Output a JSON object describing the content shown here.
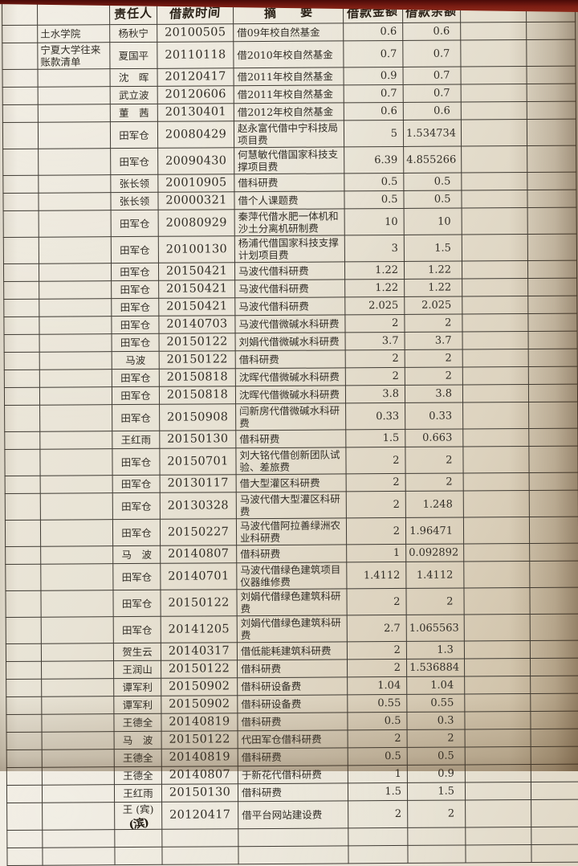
{
  "header": {
    "person": "责任人",
    "date": "借款时间",
    "summary": "摘　　要",
    "amount": "借款金额",
    "balance": "借款余额"
  },
  "rows": [
    {
      "category": "土水学院",
      "person": "杨秋宁",
      "date": "20100505",
      "summary": "借09年校自然基金",
      "amount": "0.6",
      "balance": "0.6"
    },
    {
      "category": "宁夏大学往来账款清单",
      "person": "夏国平",
      "date": "20110118",
      "summary": "借2010年校自然基金",
      "amount": "0.7",
      "balance": "0.7"
    },
    {
      "person": "沈　晖",
      "date": "20120417",
      "summary": "借2011年校自然基金",
      "amount": "0.9",
      "balance": "0.7"
    },
    {
      "person": "武立波",
      "date": "20120606",
      "summary": "借2011年校自然基金",
      "amount": "0.7",
      "balance": "0.7"
    },
    {
      "person": "董　茜",
      "date": "20130401",
      "summary": "借2012年校自然基金",
      "amount": "0.6",
      "balance": "0.6"
    },
    {
      "person": "田军仓",
      "date": "20080429",
      "summary": "赵永富代借中宁科技局项目费",
      "amount": "5",
      "balance": "1.534734"
    },
    {
      "person": "田军仓",
      "date": "20090430",
      "summary": "何慧敏代借国家科技支撑项目费",
      "amount": "6.39",
      "balance": "4.855266"
    },
    {
      "person": "张长领",
      "date": "20010905",
      "summary": "借科研费",
      "amount": "0.5",
      "balance": "0.5"
    },
    {
      "person": "张长领",
      "date": "20000321",
      "summary": "借个人课题费",
      "amount": "0.5",
      "balance": "0.5"
    },
    {
      "person": "田军仓",
      "date": "20080929",
      "summary": "秦萍代借水肥一体机和沙土分离机研制费",
      "amount": "10",
      "balance": "10"
    },
    {
      "person": "田军仓",
      "date": "20100130",
      "summary": "杨浦代借国家科技支撑计划项目费",
      "amount": "3",
      "balance": "1.5"
    },
    {
      "person": "田军仓",
      "date": "20150421",
      "summary": "马波代借科研费",
      "amount": "1.22",
      "balance": "1.22"
    },
    {
      "person": "田军仓",
      "date": "20150421",
      "summary": "马波代借科研费",
      "amount": "1.22",
      "balance": "1.22"
    },
    {
      "person": "田军仓",
      "date": "20150421",
      "summary": "马波代借科研费",
      "amount": "2.025",
      "balance": "2.025"
    },
    {
      "person": "田军仓",
      "date": "20140703",
      "summary": "马波代借微碱水科研费",
      "amount": "2",
      "balance": "2"
    },
    {
      "person": "田军仓",
      "date": "20150122",
      "summary": "刘娟代借微碱水科研费",
      "amount": "3.7",
      "balance": "3.7"
    },
    {
      "person": "马波",
      "date": "20150122",
      "summary": "借科研费",
      "amount": "2",
      "balance": "2"
    },
    {
      "person": "田军仓",
      "date": "20150818",
      "summary": "沈晖代借微碱水科研费",
      "amount": "2",
      "balance": "2"
    },
    {
      "person": "田军仓",
      "date": "20150818",
      "summary": "沈晖代借微碱水科研费",
      "amount": "3.8",
      "balance": "3.8"
    },
    {
      "person": "田军仓",
      "date": "20150908",
      "summary": "闫新房代借微碱水科研费",
      "amount": "0.33",
      "balance": "0.33"
    },
    {
      "person": "王红雨",
      "date": "20150130",
      "summary": "借科研费",
      "amount": "1.5",
      "balance": "0.663"
    },
    {
      "person": "田军仓",
      "date": "20150701",
      "summary": "刘大铭代借创新团队试验、差旅费",
      "amount": "2",
      "balance": "2"
    },
    {
      "person": "田军仓",
      "date": "20130117",
      "summary": "借大型灌区科研费",
      "amount": "2",
      "balance": "2"
    },
    {
      "person": "田军仓",
      "date": "20130328",
      "summary": "马波代借大型灌区科研费",
      "amount": "2",
      "balance": "1.248"
    },
    {
      "person": "田军仓",
      "date": "20150227",
      "summary": "马波代借阿拉善绿洲农业科研费",
      "amount": "2",
      "balance": "1.96471"
    },
    {
      "person": "马　波",
      "date": "20140807",
      "summary": "借科研费",
      "amount": "1",
      "balance": "0.092892"
    },
    {
      "person": "田军仓",
      "date": "20140701",
      "summary": "马波代借绿色建筑项目仪器维修费",
      "amount": "1.4112",
      "balance": "1.4112"
    },
    {
      "person": "田军仓",
      "date": "20150122",
      "summary": "刘娟代借绿色建筑科研费",
      "amount": "2",
      "balance": "2"
    },
    {
      "person": "田军仓",
      "date": "20141205",
      "summary": "刘娟代借绿色建筑科研费",
      "amount": "2.7",
      "balance": "1.065563"
    },
    {
      "person": "贺生云",
      "date": "20140317",
      "summary": "借低能耗建筑科研费",
      "amount": "2",
      "balance": "1.3"
    },
    {
      "person": "王润山",
      "date": "20150122",
      "summary": "借科研费",
      "amount": "2",
      "balance": "1.536884"
    },
    {
      "person": "谭军利",
      "date": "20150902",
      "summary": "借科研设备费",
      "amount": "1.04",
      "balance": "1.04"
    },
    {
      "person": "谭军利",
      "date": "20150902",
      "summary": "借科研设备费",
      "amount": "0.55",
      "balance": "0.55"
    },
    {
      "person": "王德全",
      "date": "20140819",
      "summary": "借科研费",
      "amount": "0.5",
      "balance": "0.3"
    },
    {
      "person": "马　波",
      "date": "20150122",
      "summary": "代田军仓借科研费",
      "amount": "2",
      "balance": "2"
    },
    {
      "person": "王德全",
      "date": "20140819",
      "summary": "借科研费",
      "amount": "0.5",
      "balance": "0.5"
    },
    {
      "person": "王德全",
      "date": "20140807",
      "summary": "于新花代借科研费",
      "amount": "1",
      "balance": "0.9"
    },
    {
      "person": "王红雨",
      "date": "20150130",
      "summary": "借科研费",
      "amount": "1.5",
      "balance": "1.5"
    },
    {
      "person": "王 (宾)",
      "date": "20120417",
      "summary": "借平台网站建设费",
      "amount": "2",
      "balance": "2",
      "note": "(滨)"
    },
    {},
    {}
  ]
}
